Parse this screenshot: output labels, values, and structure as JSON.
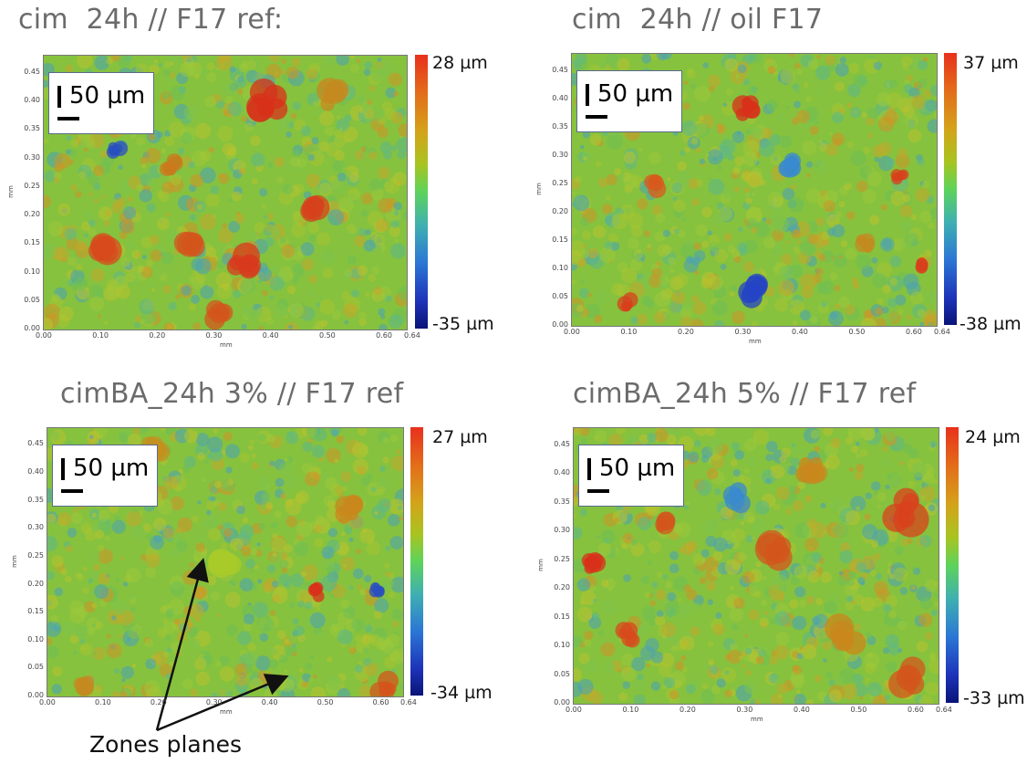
{
  "panels": [
    {
      "title": "cim  24h // F17 ref:",
      "scale_label": "50 µm",
      "colorbar_max": "28 µm",
      "colorbar_min": "-35 µm",
      "y_axis_unit": "mm",
      "x_axis_unit": "mm",
      "y_ticks": [
        "0.45",
        "0.40",
        "0.35",
        "0.30",
        "0.25",
        "0.20",
        "0.15",
        "0.10",
        "0.05",
        "0.00"
      ],
      "x_ticks": [
        "0.00",
        "0.10",
        "0.20",
        "0.30",
        "0.40",
        "0.50",
        "0.60",
        "0.64"
      ]
    },
    {
      "title": "cim  24h // oil F17",
      "scale_label": "50 µm",
      "colorbar_max": "37 µm",
      "colorbar_min": "-38 µm",
      "y_axis_unit": "mm",
      "x_axis_unit": "mm",
      "y_ticks": [
        "0.45",
        "0.40",
        "0.35",
        "0.30",
        "0.25",
        "0.20",
        "0.15",
        "0.10",
        "0.05",
        "0.00"
      ],
      "x_ticks": [
        "0.00",
        "0.10",
        "0.20",
        "0.30",
        "0.40",
        "0.50",
        "0.60",
        "0.64"
      ]
    },
    {
      "title": "cimBA_24h 3% // F17 ref",
      "scale_label": "50 µm",
      "colorbar_max": "27 µm",
      "colorbar_min": "-34 µm",
      "y_axis_unit": "mm",
      "x_axis_unit": "mm",
      "y_ticks": [
        "0.45",
        "0.40",
        "0.35",
        "0.30",
        "0.25",
        "0.20",
        "0.15",
        "0.10",
        "0.05",
        "0.00"
      ],
      "x_ticks": [
        "0.00",
        "0.10",
        "0.20",
        "0.30",
        "0.40",
        "0.50",
        "0.60",
        "0.64"
      ]
    },
    {
      "title": "cimBA_24h 5% // F17 ref",
      "scale_label": "50 µm",
      "colorbar_max": "24 µm",
      "colorbar_min": "-33 µm",
      "y_axis_unit": "mm",
      "x_axis_unit": "mm",
      "y_ticks": [
        "0.45",
        "0.40",
        "0.35",
        "0.30",
        "0.25",
        "0.20",
        "0.15",
        "0.10",
        "0.05",
        "0.00"
      ],
      "x_ticks": [
        "0.00",
        "0.10",
        "0.20",
        "0.30",
        "0.40",
        "0.50",
        "0.60",
        "0.64"
      ]
    }
  ],
  "annotation": {
    "label": "Zones planes"
  },
  "colors": {
    "title_gray": "#6b6b6b",
    "surface_base": "#8cc43a",
    "peak_red": "#d83a1c",
    "valley_blue": "#2a4fc0"
  }
}
